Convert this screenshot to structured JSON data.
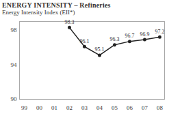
{
  "chart_data": {
    "type": "line",
    "title": "ENERGY INTENSITY – Refineries",
    "subtitle": "Energy Intensity Index (EII*)",
    "categories": [
      "99",
      "00",
      "01",
      "02",
      "03",
      "04",
      "05",
      "06",
      "07",
      "08"
    ],
    "values": [
      null,
      null,
      null,
      98.3,
      96.1,
      95.1,
      96.3,
      96.7,
      96.9,
      97.2
    ],
    "color": "#222222",
    "marker": "circle",
    "ylim": [
      90,
      99
    ],
    "yticks": [
      90,
      94,
      98
    ],
    "grid": false,
    "data_labels": true
  }
}
